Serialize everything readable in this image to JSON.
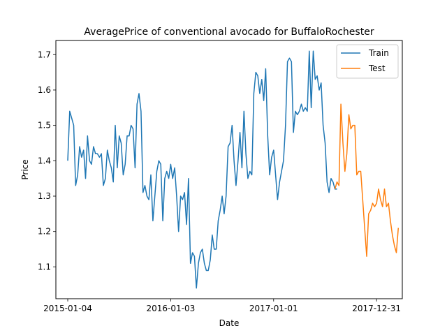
{
  "chart_data": {
    "type": "line",
    "title": "AveragePrice of conventional avocado for BuffaloRochester",
    "xlabel": "Date",
    "ylabel": "Price",
    "x_tick_labels": [
      "2015-01-04",
      "2016-01-03",
      "2017-01-01",
      "2017-12-31"
    ],
    "y_tick_labels": [
      "1.1",
      "1.2",
      "1.3",
      "1.4",
      "1.5",
      "1.6",
      "1.7"
    ],
    "ylim": [
      1.01,
      1.74
    ],
    "xlim": [
      "2014-11-23",
      "2018-04-01"
    ],
    "legend_position": "top-right",
    "grid": false,
    "series": [
      {
        "name": "Train",
        "color": "#1f77b4",
        "start": "2015-01-04",
        "step_days": 7,
        "values": [
          1.4,
          1.54,
          1.52,
          1.5,
          1.33,
          1.36,
          1.44,
          1.41,
          1.43,
          1.35,
          1.47,
          1.4,
          1.39,
          1.44,
          1.42,
          1.42,
          1.41,
          1.42,
          1.33,
          1.35,
          1.43,
          1.4,
          1.38,
          1.34,
          1.5,
          1.38,
          1.47,
          1.45,
          1.36,
          1.39,
          1.47,
          1.47,
          1.5,
          1.49,
          1.38,
          1.56,
          1.59,
          1.54,
          1.31,
          1.33,
          1.3,
          1.29,
          1.36,
          1.23,
          1.3,
          1.37,
          1.4,
          1.39,
          1.23,
          1.35,
          1.37,
          1.35,
          1.39,
          1.35,
          1.38,
          1.3,
          1.2,
          1.3,
          1.29,
          1.31,
          1.22,
          1.35,
          1.11,
          1.14,
          1.13,
          1.04,
          1.11,
          1.14,
          1.15,
          1.11,
          1.09,
          1.09,
          1.12,
          1.19,
          1.15,
          1.15,
          1.23,
          1.26,
          1.3,
          1.25,
          1.3,
          1.44,
          1.45,
          1.5,
          1.4,
          1.33,
          1.4,
          1.48,
          1.38,
          1.54,
          1.42,
          1.35,
          1.37,
          1.36,
          1.59,
          1.65,
          1.64,
          1.59,
          1.63,
          1.57,
          1.66,
          1.47,
          1.36,
          1.41,
          1.43,
          1.36,
          1.29,
          1.34,
          1.37,
          1.4,
          1.5,
          1.68,
          1.69,
          1.68,
          1.48,
          1.54,
          1.53,
          1.54,
          1.56,
          1.54,
          1.55,
          1.54,
          1.71,
          1.55,
          1.71,
          1.63,
          1.64,
          1.6,
          1.62,
          1.5,
          1.45,
          1.34,
          1.31,
          1.35,
          1.34,
          1.32,
          1.32
        ]
      },
      {
        "name": "Test",
        "color": "#ff7f0e",
        "start": "2017-08-06",
        "step_days": 7,
        "values": [
          1.32,
          1.34,
          1.33,
          1.56,
          1.45,
          1.37,
          1.42,
          1.53,
          1.49,
          1.5,
          1.5,
          1.36,
          1.37,
          1.37,
          1.29,
          1.21,
          1.13,
          1.25,
          1.26,
          1.28,
          1.27,
          1.28,
          1.32,
          1.29,
          1.27,
          1.32,
          1.27,
          1.28,
          1.23,
          1.19,
          1.16,
          1.14,
          1.21
        ]
      }
    ]
  }
}
